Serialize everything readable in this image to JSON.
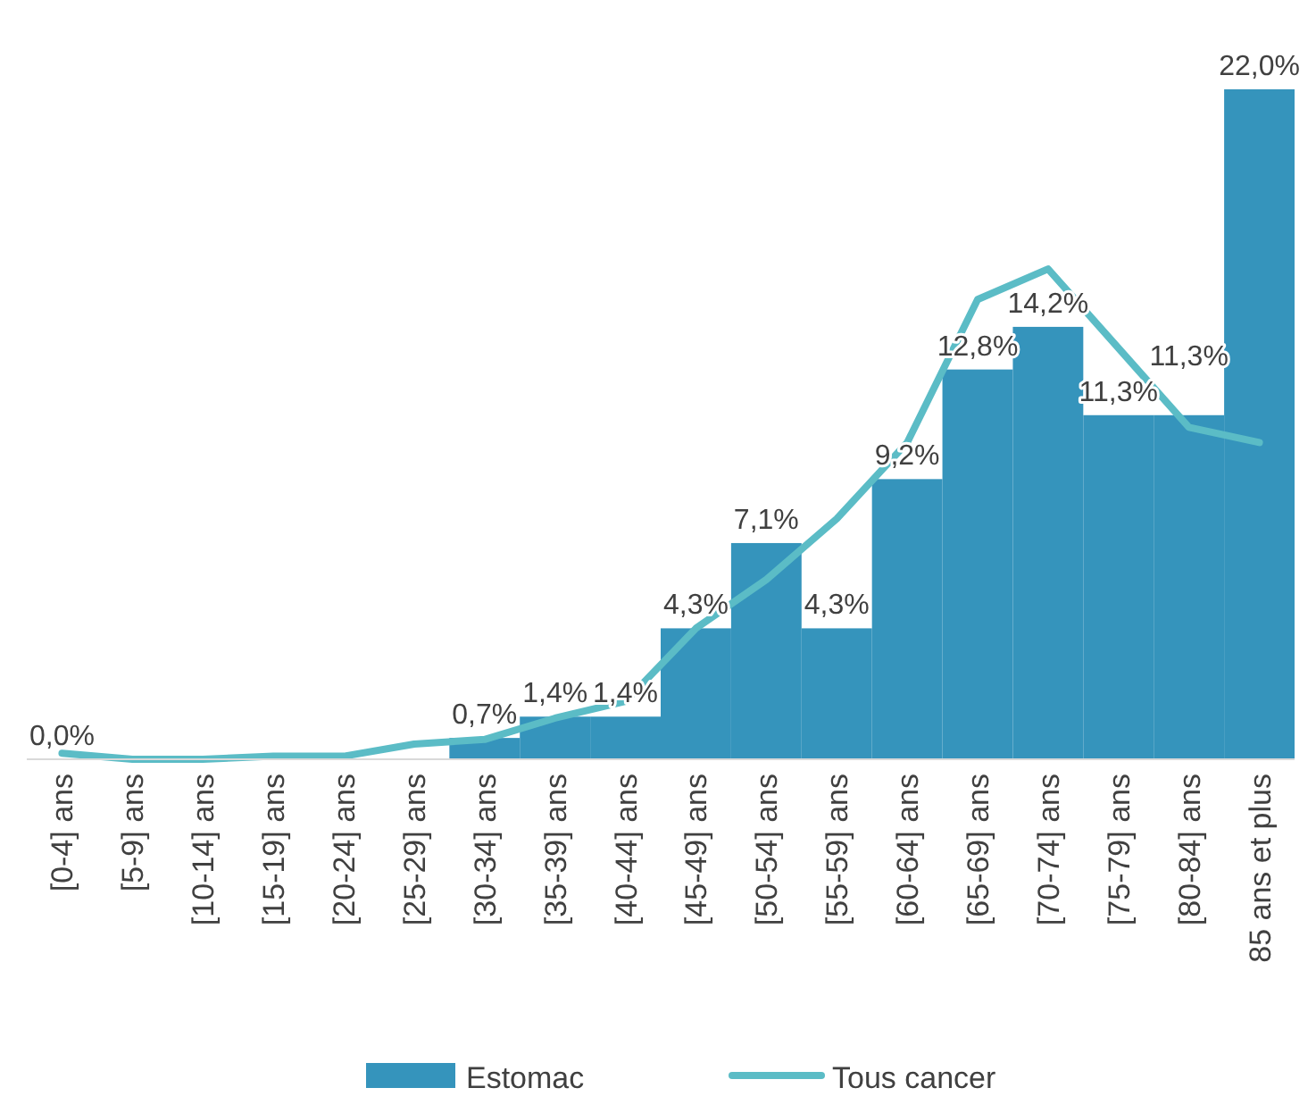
{
  "chart_data": {
    "type": "bar",
    "categories": [
      "[0-4] ans",
      "[5-9] ans",
      "[10-14] ans",
      "[15-19] ans",
      "[20-24] ans",
      "[25-29] ans",
      "[30-34] ans",
      "[35-39] ans",
      "[40-44] ans",
      "[45-49] ans",
      "[50-54] ans",
      "[55-59] ans",
      "[60-64] ans",
      "[65-69] ans",
      "[70-74] ans",
      "[75-79] ans",
      "[80-84] ans",
      "85 ans et plus"
    ],
    "series": [
      {
        "name": "Estomac",
        "color": "#3594bc",
        "values": [
          0,
          0,
          0,
          0,
          0,
          0,
          0.7,
          1.4,
          1.4,
          4.3,
          7.1,
          4.3,
          9.2,
          12.8,
          14.2,
          11.3,
          11.3,
          22.0
        ],
        "value_labels": [
          "0,0%",
          null,
          null,
          null,
          null,
          null,
          "0,7%",
          "1,4%",
          "1,4%",
          "4,3%",
          "7,1%",
          "4,3%",
          "9,2%",
          "12,8%",
          "14,2%",
          "11,3%",
          "11,3%",
          "22,0%"
        ]
      },
      {
        "name": "Tous cancer",
        "type": "line",
        "color": "#5bbcc6",
        "values": [
          0.2,
          0,
          0,
          0.1,
          0.1,
          0.5,
          0.65,
          1.35,
          1.9,
          4.3,
          5.9,
          7.9,
          10.4,
          15.1,
          16.1,
          13.5,
          10.9,
          10.4
        ]
      }
    ],
    "legend": "bottom"
  }
}
